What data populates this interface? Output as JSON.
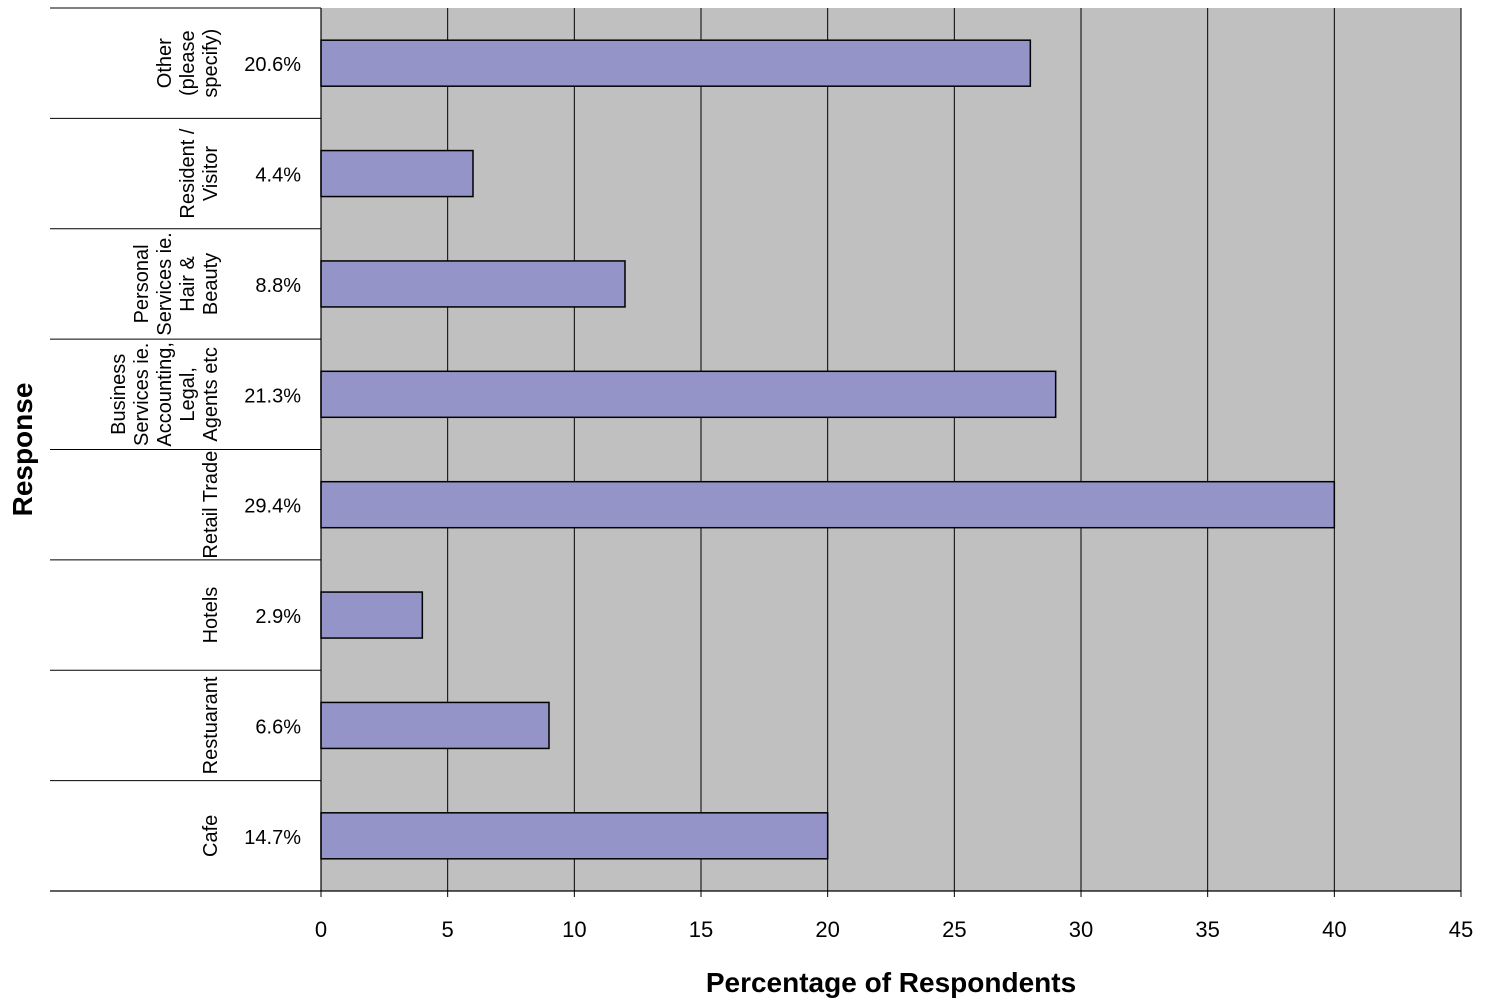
{
  "chart_data": {
    "type": "bar",
    "orientation": "horizontal",
    "title": "",
    "xlabel": "Percentage of Respondents",
    "ylabel": "Response",
    "xlim": [
      0,
      45
    ],
    "x_ticks": [
      "0",
      "5",
      "10",
      "15",
      "20",
      "25",
      "30",
      "35",
      "40",
      "45"
    ],
    "grid": "vertical",
    "legend": "none",
    "categories": [
      {
        "lines": [
          "Other",
          "(please",
          "specify)"
        ],
        "percent_label": "20.6%",
        "value": 28
      },
      {
        "lines": [
          "Resident /",
          "Visitor"
        ],
        "percent_label": "4.4%",
        "value": 6
      },
      {
        "lines": [
          "Personal",
          "Services ie.",
          "Hair &",
          "Beauty"
        ],
        "percent_label": "8.8%",
        "value": 12
      },
      {
        "lines": [
          "Business",
          "Services ie.",
          "Accounting,",
          "Legal,",
          "Agents etc"
        ],
        "percent_label": "21.3%",
        "value": 29
      },
      {
        "lines": [
          "Retail Trade"
        ],
        "percent_label": "29.4%",
        "value": 40
      },
      {
        "lines": [
          "Hotels"
        ],
        "percent_label": "2.9%",
        "value": 4
      },
      {
        "lines": [
          "Restuarant"
        ],
        "percent_label": "6.6%",
        "value": 9
      },
      {
        "lines": [
          "Cafe"
        ],
        "percent_label": "14.7%",
        "value": 20
      }
    ],
    "colors": {
      "bar_fill": "#9494c8",
      "plot_background": "#c0c0c0",
      "gridline": "#000000"
    }
  }
}
